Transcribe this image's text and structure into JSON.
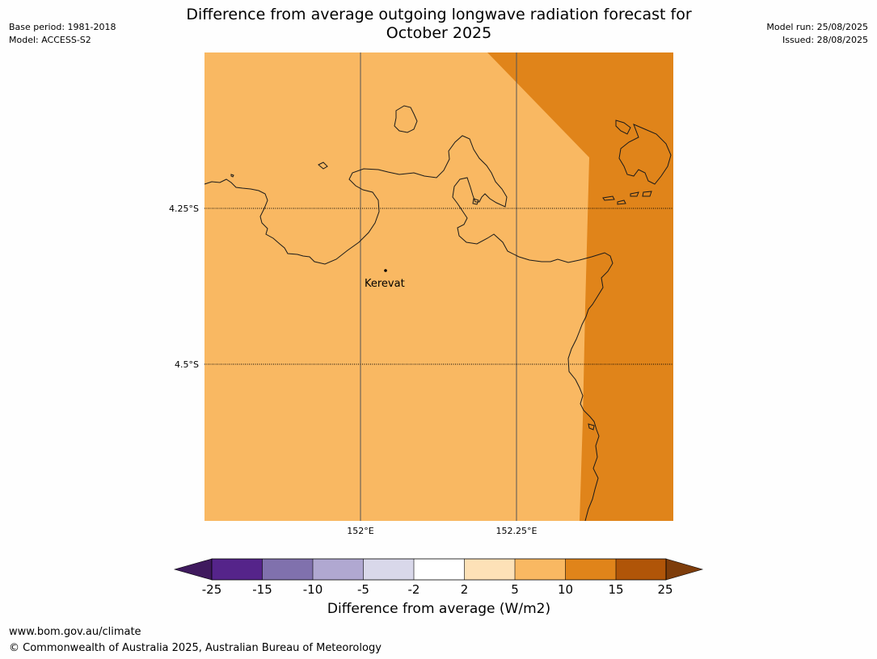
{
  "header": {
    "title_line1": "Difference from average outgoing longwave radiation forecast for",
    "title_line2": "October 2025",
    "base_period": "Base period: 1981-2018",
    "model": "Model: ACCESS-S2",
    "model_run": "Model run: 25/08/2025",
    "issued": "Issued: 28/08/2025"
  },
  "map": {
    "lat_labels": [
      "4.25°S",
      "4.5°S"
    ],
    "lon_labels": [
      "152°E",
      "152.25°E"
    ],
    "place": {
      "name": "Kerevat"
    },
    "region_colors": {
      "light_orange": "#f9b862",
      "dark_orange": "#e0841a"
    },
    "legend_category_left": "5 to 10",
    "legend_category_right": "10 to 15"
  },
  "colorbar": {
    "ticks": [
      "-25",
      "-15",
      "-10",
      "-5",
      "-2",
      "2",
      "5",
      "10",
      "15",
      "25"
    ],
    "colors": [
      "#3f1a5e",
      "#55248a",
      "#8071ad",
      "#b0a8d1",
      "#d9d8ea",
      "#ffffff",
      "#fde1b7",
      "#f9b862",
      "#e0841a",
      "#b05508",
      "#7e3d0b"
    ],
    "title": "Difference from average (W/m2)"
  },
  "footer": {
    "url": "www.bom.gov.au/climate",
    "copyright": "© Commonwealth of Australia 2025, Australian Bureau of Meteorology"
  }
}
